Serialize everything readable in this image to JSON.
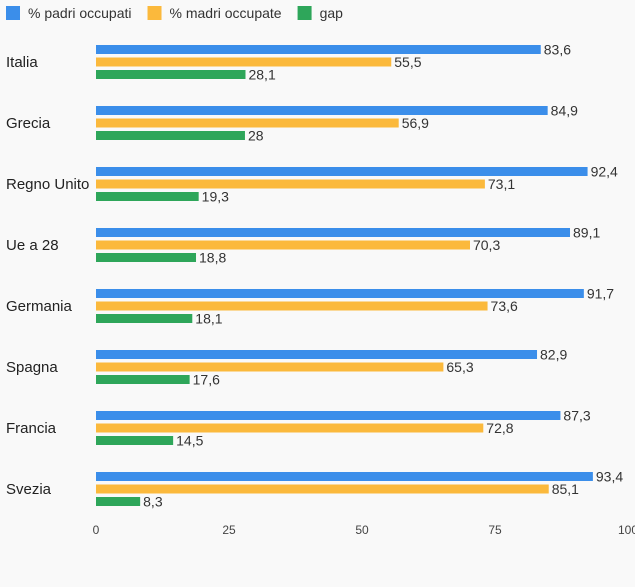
{
  "chart_data": {
    "type": "bar",
    "orientation": "horizontal",
    "title": "",
    "xlabel": "",
    "ylabel": "",
    "xlim": [
      0,
      100
    ],
    "xticks": [
      "0",
      "25",
      "50",
      "75",
      "100"
    ],
    "grid": false,
    "legend_position": "top-left",
    "categories": [
      "Italia",
      "Grecia",
      "Regno Unito",
      "Ue a 28",
      "Germania",
      "Spagna",
      "Francia",
      "Svezia"
    ],
    "series": [
      {
        "name": "% padri occupati",
        "color": "#3b8eea",
        "values": [
          83.6,
          84.9,
          92.4,
          89.1,
          91.7,
          82.9,
          87.3,
          93.4
        ],
        "labels": [
          "83,6",
          "84,9",
          "92,4",
          "89,1",
          "91,7",
          "82,9",
          "87,3",
          "93,4"
        ]
      },
      {
        "name": "% madri occupate",
        "color": "#fbb93c",
        "values": [
          55.5,
          56.9,
          73.1,
          70.3,
          73.6,
          65.3,
          72.8,
          85.1
        ],
        "labels": [
          "55,5",
          "56,9",
          "73,1",
          "70,3",
          "73,6",
          "65,3",
          "72,8",
          "85,1"
        ]
      },
      {
        "name": "gap",
        "color": "#2ea65a",
        "values": [
          28.1,
          28,
          19.3,
          18.8,
          18.1,
          17.6,
          14.5,
          8.3
        ],
        "labels": [
          "28,1",
          "28",
          "19,3",
          "18,8",
          "18,1",
          "17,6",
          "14,5",
          "8,3"
        ]
      }
    ]
  }
}
